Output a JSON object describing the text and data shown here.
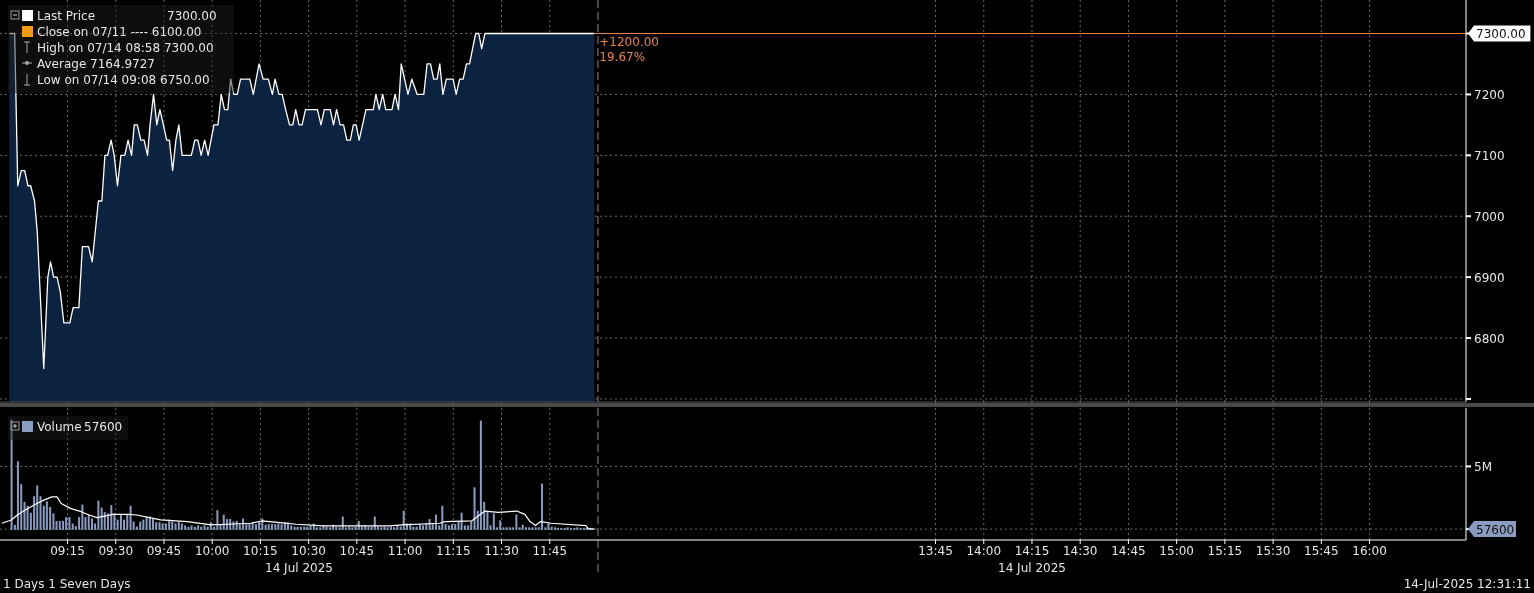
{
  "chart_data": [
    {
      "type": "area",
      "xlim": [
        8.9,
        16.5
      ],
      "ylim": [
        6695,
        7355
      ],
      "xticks": [
        9.25,
        9.5,
        9.75,
        10,
        10.25,
        10.5,
        10.75,
        11,
        11.25,
        11.5,
        11.75,
        13.75,
        14,
        14.25,
        14.5,
        14.75,
        15,
        15.25,
        15.5,
        15.75,
        16
      ],
      "yticks": [
        {
          "value": 6700,
          "label": null
        },
        6800,
        6900,
        7000,
        7100,
        7200,
        {
          "value": 7300,
          "label": "7300.00"
        }
      ],
      "tick_labels": "y",
      "grid": true,
      "legend": "top left",
      "series": [
        {
          "name": "Last Price",
          "color": "#ffffff",
          "x": [
            8.948,
            8.976,
            8.992,
            9.01,
            9.028,
            9.045,
            9.059,
            9.079,
            9.093,
            9.127,
            9.148,
            9.162,
            9.178,
            9.196,
            9.213,
            9.231,
            9.262,
            9.279,
            9.309,
            9.327,
            9.359,
            9.378,
            9.41,
            9.428,
            9.444,
            9.458,
            9.476,
            9.492,
            9.509,
            9.527,
            9.547,
            9.564,
            9.582,
            9.596,
            9.612,
            9.63,
            9.647,
            9.665,
            9.678,
            9.696,
            9.713,
            9.729,
            9.747,
            9.764,
            9.778,
            9.795,
            9.812,
            9.827,
            9.844,
            9.892,
            9.91,
            9.926,
            9.943,
            9.961,
            9.979,
            10.009,
            10.03,
            10.047,
            10.064,
            10.081,
            10.096,
            10.112,
            10.13,
            10.147,
            10.195,
            10.213,
            10.243,
            10.264,
            10.291,
            10.312,
            10.326,
            10.346,
            10.363,
            10.381,
            10.401,
            10.418,
            10.433,
            10.45,
            10.466,
            10.484,
            10.546,
            10.564,
            10.581,
            10.612,
            10.629,
            10.645,
            10.663,
            10.681,
            10.698,
            10.716,
            10.732,
            10.746,
            10.762,
            10.797,
            10.835,
            10.849,
            10.866,
            10.884,
            10.9,
            10.932,
            10.948,
            10.966,
            10.98,
            11.015,
            11.035,
            11.063,
            11.097,
            11.114,
            11.132,
            11.148,
            11.166,
            11.18,
            11.196,
            11.214,
            11.249,
            11.265,
            11.283,
            11.301,
            11.318,
            11.334,
            11.366,
            11.382,
            11.397,
            11.414,
            11.981
          ],
          "values": [
            7300,
            7300,
            7050,
            7075,
            7075,
            7050,
            7050,
            7025,
            6975,
            6750,
            6900,
            6925,
            6900,
            6900,
            6875,
            6825,
            6825,
            6850,
            6850,
            6950,
            6950,
            6925,
            7025,
            7025,
            7100,
            7100,
            7125,
            7100,
            7050,
            7100,
            7100,
            7125,
            7100,
            7150,
            7150,
            7125,
            7125,
            7100,
            7150,
            7200,
            7150,
            7175,
            7150,
            7125,
            7125,
            7075,
            7125,
            7150,
            7100,
            7100,
            7125,
            7125,
            7100,
            7125,
            7100,
            7150,
            7150,
            7200,
            7175,
            7175,
            7225,
            7200,
            7200,
            7225,
            7225,
            7200,
            7250,
            7225,
            7225,
            7200,
            7225,
            7200,
            7200,
            7175,
            7150,
            7150,
            7175,
            7150,
            7150,
            7175,
            7175,
            7150,
            7175,
            7175,
            7150,
            7175,
            7150,
            7150,
            7125,
            7125,
            7150,
            7150,
            7125,
            7175,
            7175,
            7200,
            7175,
            7200,
            7175,
            7175,
            7200,
            7175,
            7250,
            7200,
            7225,
            7200,
            7200,
            7250,
            7250,
            7225,
            7225,
            7250,
            7200,
            7225,
            7225,
            7200,
            7225,
            7225,
            7250,
            7250,
            7300,
            7300,
            7275,
            7300,
            7300
          ]
        }
      ],
      "ref_lines": [
        {
          "axis": "y",
          "value": 7300,
          "color": "#e8823c"
        },
        {
          "axis": "x",
          "value": 12,
          "color": "#8a8a8a",
          "line_style": "dashed"
        }
      ],
      "annotations": [
        "7300.00",
        "Close on 07/11 ---- 6100.00",
        "High on 07/14 08:58 7300.00",
        "Average 7164.9727",
        "Low on 07/14 09:08 6750.00",
        {
          "text": "+1200.00",
          "x": 11.981,
          "y": 7300
        },
        {
          "text": "19.67%",
          "x": 11.981,
          "y": 7300
        }
      ]
    },
    {
      "type": "bar",
      "xlim": [
        8.9,
        16.5
      ],
      "ylim": [
        -800000,
        9600000
      ],
      "xlabel": "14 Jul 2025",
      "xticks": [
        {
          "value": 9.25,
          "label": "09:15"
        },
        {
          "value": 9.5,
          "label": "09:30"
        },
        {
          "value": 9.75,
          "label": "09:45"
        },
        {
          "value": 10,
          "label": "10:00"
        },
        {
          "value": 10.25,
          "label": "10:15"
        },
        {
          "value": 10.5,
          "label": "10:30"
        },
        {
          "value": 10.75,
          "label": "10:45"
        },
        {
          "value": 11,
          "label": "11:00"
        },
        {
          "value": 11.25,
          "label": "11:15"
        },
        {
          "value": 11.5,
          "label": "11:30"
        },
        {
          "value": 11.75,
          "label": "11:45"
        },
        {
          "value": 13.75,
          "label": "13:45"
        },
        {
          "value": 14,
          "label": "14:00"
        },
        {
          "value": 14.25,
          "label": "14:15"
        },
        {
          "value": 14.5,
          "label": "14:30"
        },
        {
          "value": 14.75,
          "label": "14:45"
        },
        {
          "value": 15,
          "label": "15:00"
        },
        {
          "value": 15.25,
          "label": "15:15"
        },
        {
          "value": 15.5,
          "label": "15:30"
        },
        {
          "value": 15.75,
          "label": "15:45"
        },
        {
          "value": 16,
          "label": "16:00"
        }
      ],
      "yticks": [
        {
          "value": 57600,
          "label": "57600"
        },
        {
          "value": 5000000,
          "label": "5M"
        }
      ],
      "grid": true,
      "legend": "top left",
      "ref_lines": [
        {
          "axis": "x",
          "value": 12,
          "color": "#8a8a8a",
          "line_style": "dashed"
        }
      ],
      "series": [
        {
          "name": "Volume",
          "color": "#8a9cc2",
          "x": [
            8.96,
            8.977,
            8.993,
            9.01,
            9.027,
            9.043,
            9.06,
            9.077,
            9.093,
            9.11,
            9.127,
            9.143,
            9.16,
            9.177,
            9.193,
            9.21,
            9.227,
            9.243,
            9.26,
            9.277,
            9.293,
            9.31,
            9.327,
            9.343,
            9.36,
            9.377,
            9.393,
            9.41,
            9.427,
            9.443,
            9.46,
            9.477,
            9.493,
            9.51,
            9.527,
            9.543,
            9.56,
            9.577,
            9.593,
            9.61,
            9.627,
            9.643,
            9.66,
            9.677,
            9.693,
            9.71,
            9.727,
            9.743,
            9.76,
            9.777,
            9.793,
            9.81,
            9.827,
            9.843,
            9.86,
            9.877,
            9.893,
            9.91,
            9.927,
            9.943,
            9.96,
            9.977,
            9.993,
            10.01,
            10.027,
            10.043,
            10.06,
            10.077,
            10.093,
            10.11,
            10.127,
            10.143,
            10.16,
            10.177,
            10.193,
            10.21,
            10.227,
            10.243,
            10.26,
            10.277,
            10.293,
            10.31,
            10.327,
            10.343,
            10.36,
            10.377,
            10.393,
            10.41,
            10.427,
            10.443,
            10.46,
            10.477,
            10.493,
            10.51,
            10.527,
            10.543,
            10.56,
            10.577,
            10.593,
            10.61,
            10.627,
            10.643,
            10.66,
            10.677,
            10.693,
            10.71,
            10.727,
            10.743,
            10.76,
            10.777,
            10.793,
            10.81,
            10.827,
            10.843,
            10.86,
            10.877,
            10.893,
            10.91,
            10.927,
            10.943,
            10.96,
            10.977,
            10.993,
            11.01,
            11.027,
            11.043,
            11.06,
            11.077,
            11.093,
            11.11,
            11.127,
            11.143,
            11.16,
            11.177,
            11.193,
            11.21,
            11.227,
            11.243,
            11.26,
            11.277,
            11.293,
            11.31,
            11.327,
            11.343,
            11.36,
            11.377,
            11.393,
            11.41,
            11.427,
            11.443,
            11.46,
            11.477,
            11.493,
            11.51,
            11.527,
            11.543,
            11.56,
            11.577,
            11.593,
            11.61,
            11.627,
            11.643,
            11.66,
            11.677,
            11.693,
            11.71,
            11.727,
            11.743,
            11.76,
            11.777,
            11.793,
            11.81,
            11.827,
            11.843,
            11.86,
            11.877,
            11.893,
            11.91,
            11.927,
            11.943,
            11.96,
            11.977
          ],
          "values": [
            8700000,
            400000,
            5400000,
            3600000,
            2200000,
            1900000,
            1350000,
            2650000,
            3500000,
            2650000,
            1900000,
            2250000,
            1800000,
            1300000,
            700000,
            700000,
            700000,
            1000000,
            1000000,
            500000,
            300000,
            1000000,
            2000000,
            1000000,
            1200000,
            900000,
            500000,
            2300000,
            1750000,
            1400000,
            1300000,
            1950000,
            1300000,
            800000,
            1200000,
            800000,
            1200000,
            1900000,
            650000,
            250000,
            650000,
            800000,
            1050000,
            1050000,
            900000,
            600000,
            600000,
            500000,
            500000,
            800000,
            650000,
            500000,
            650000,
            500000,
            350000,
            250000,
            350000,
            250000,
            350000,
            250000,
            350000,
            250000,
            600000,
            250000,
            1550000,
            400000,
            1200000,
            850000,
            850000,
            650000,
            700000,
            450000,
            900000,
            450000,
            500000,
            600000,
            450000,
            650000,
            900000,
            400000,
            450000,
            450000,
            450000,
            500000,
            450000,
            600000,
            600000,
            350000,
            250000,
            250000,
            250000,
            250000,
            250000,
            350000,
            500000,
            200000,
            200000,
            350000,
            250000,
            200000,
            400000,
            250000,
            200000,
            1050000,
            200000,
            250000,
            200000,
            250000,
            700000,
            250000,
            350000,
            250000,
            250000,
            1050000,
            250000,
            200000,
            250000,
            200000,
            250000,
            200000,
            350000,
            250000,
            1500000,
            500000,
            500000,
            250000,
            250000,
            450000,
            350000,
            500000,
            850000,
            450000,
            1200000,
            350000,
            1900000,
            450000,
            350000,
            450000,
            450000,
            650000,
            1350000,
            350000,
            350000,
            650000,
            3350000,
            1500000,
            8600000,
            2200000,
            1400000,
            350000,
            1300000,
            200000,
            750000,
            200000,
            200000,
            200000,
            200000,
            1200000,
            200000,
            400000,
            200000,
            200000,
            200000,
            200000,
            200000,
            3650000,
            200000,
            500000,
            250000,
            200000,
            150000,
            150000,
            150000,
            200000,
            150000,
            150000,
            200000,
            150000,
            150000,
            150000,
            100000,
            57600
          ]
        },
        {
          "type": "line",
          "color": "#ffffff",
          "x": [
            8.91,
            8.959,
            8.99,
            9.031,
            9.086,
            9.127,
            9.169,
            9.196,
            9.217,
            9.265,
            9.32,
            9.362,
            9.403,
            9.486,
            9.568,
            9.609,
            9.733,
            9.871,
            9.995,
            10.078,
            10.202,
            10.257,
            10.353,
            10.436,
            10.574,
            10.711,
            10.918,
            10.987,
            11.18,
            11.207,
            11.345,
            11.386,
            11.414,
            11.483,
            11.579,
            11.621,
            11.648,
            11.676,
            11.703,
            11.758,
            11.937,
            11.951,
            11.981
          ],
          "values": [
            520000,
            780000,
            1170000,
            1560000,
            2030000,
            2340000,
            2600000,
            2600000,
            2080000,
            1690000,
            1430000,
            1170000,
            960000,
            1220000,
            1220000,
            1170000,
            780000,
            650000,
            390000,
            440000,
            520000,
            700000,
            570000,
            440000,
            310000,
            310000,
            310000,
            390000,
            520000,
            650000,
            700000,
            1170000,
            1480000,
            1380000,
            1480000,
            1220000,
            650000,
            340000,
            650000,
            520000,
            340000,
            80000,
            80000
          ]
        }
      ],
      "annotations": [
        "57600",
        "1 Days 1 Seven Days",
        "14-Jul-2025 12:31:11"
      ]
    }
  ]
}
